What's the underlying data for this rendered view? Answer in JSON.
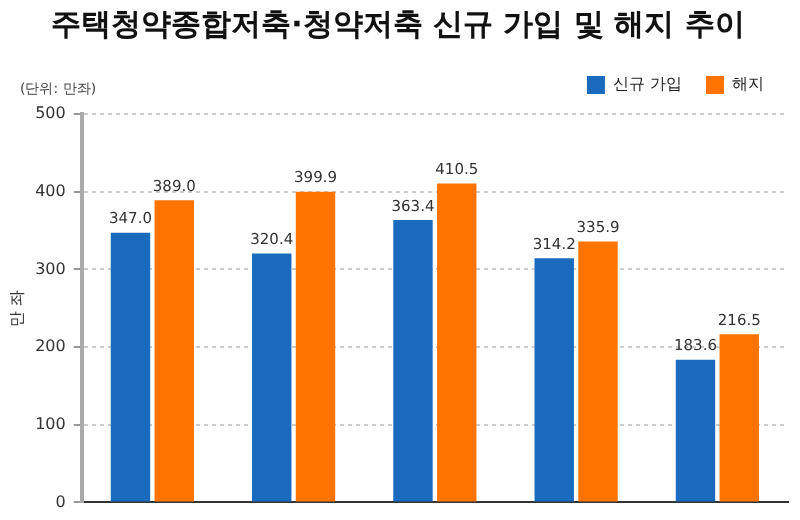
{
  "chart_data": {
    "type": "bar",
    "title": "주택청약종합저축·청약저축 신규 가입 및 해지 추이",
    "ylabel": "만 좌",
    "annotations": [
      "(단위: 만좌)"
    ],
    "categories": [
      null,
      null,
      null,
      null,
      null
    ],
    "series": [
      {
        "name": "신규 가입",
        "color": "#1a6bbd",
        "values": [
          347.0,
          320.4,
          363.4,
          314.2,
          183.6
        ],
        "value_labels": [
          "347.0",
          "320.4",
          "363.4",
          "314.2",
          "183.6"
        ]
      },
      {
        "name": "해지",
        "color": "#ff7300",
        "values": [
          389.0,
          399.9,
          410.5,
          335.9,
          216.5
        ],
        "value_labels": [
          "389.0",
          "399.9",
          "410.5",
          "335.9",
          "216.5"
        ]
      }
    ],
    "ylim": [
      0,
      500
    ],
    "yticks": [
      0,
      100,
      200,
      300,
      400,
      500
    ],
    "grid": "y",
    "legend": "top right",
    "tick_labels": "y"
  }
}
